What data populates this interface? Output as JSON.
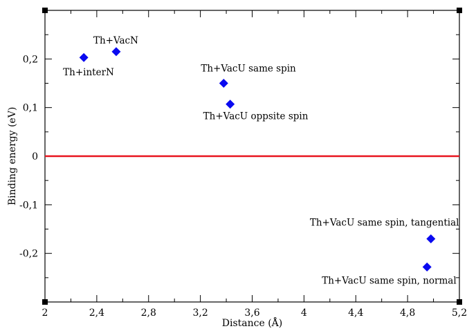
{
  "chart_data": {
    "type": "scatter",
    "title": "",
    "xlabel": "Distance (Å)",
    "ylabel": "Binding energy (eV)",
    "xlim": [
      2,
      5.2
    ],
    "ylim": [
      -0.3,
      0.3
    ],
    "x_ticks": [
      {
        "value": 2,
        "label": "2"
      },
      {
        "value": 2.4,
        "label": "2,4"
      },
      {
        "value": 2.8,
        "label": "2,8"
      },
      {
        "value": 3.2,
        "label": "3,2"
      },
      {
        "value": 3.6,
        "label": "3,6"
      },
      {
        "value": 4,
        "label": "4"
      },
      {
        "value": 4.4,
        "label": "4,4"
      },
      {
        "value": 4.8,
        "label": "4,8"
      },
      {
        "value": 5.2,
        "label": "5,2"
      }
    ],
    "y_ticks": [
      {
        "value": 0.2,
        "label": "0,2"
      },
      {
        "value": 0.1,
        "label": "0,1"
      },
      {
        "value": 0,
        "label": "0"
      },
      {
        "value": -0.1,
        "label": "-0,1"
      },
      {
        "value": -0.2,
        "label": "-0,2"
      }
    ],
    "grid": false,
    "legend": "none",
    "reference_line": {
      "y": 0,
      "color": "#e8141e"
    },
    "marker_color": "#0a0af0",
    "points": [
      {
        "x": 2.3,
        "y": 0.203,
        "label": "Th+interN"
      },
      {
        "x": 2.55,
        "y": 0.215,
        "label": "Th+VacN"
      },
      {
        "x": 3.38,
        "y": 0.15,
        "label": "Th+VacU same spin"
      },
      {
        "x": 3.43,
        "y": 0.107,
        "label": "Th+VacU oppsite spin"
      },
      {
        "x": 4.98,
        "y": -0.17,
        "label": "Th+VacU same spin, tangential"
      },
      {
        "x": 4.95,
        "y": -0.228,
        "label": "Th+VacU same spin, normal"
      }
    ]
  }
}
